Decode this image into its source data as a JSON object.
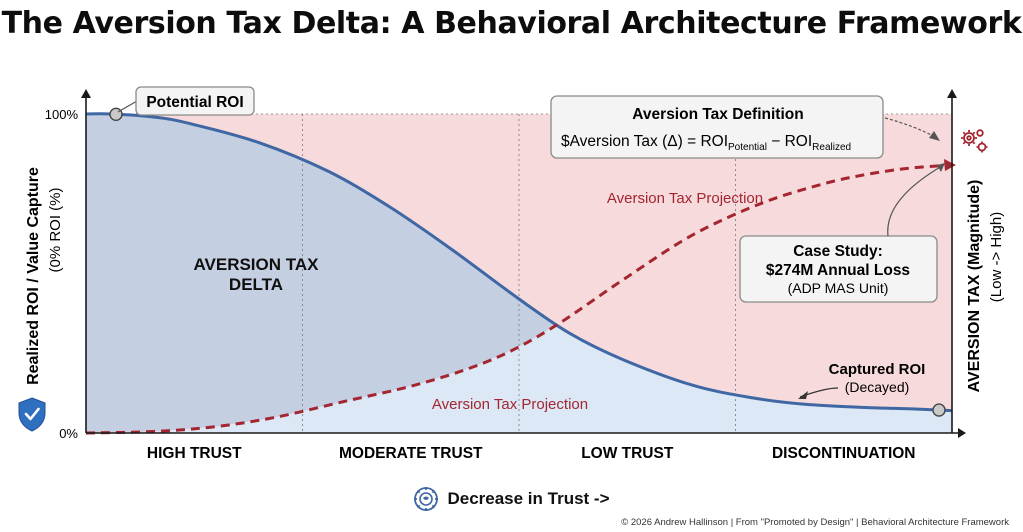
{
  "title": "The Aversion Tax Delta: A Behavioral Architecture Framework",
  "colors": {
    "curve": "#3f67a3",
    "projection": "#a32630",
    "delta_fill": "#c3cee0",
    "captured_fill": "#dce8f5",
    "tax_fill": "#f7dadb",
    "axis": "#1a1a1a"
  },
  "chart_data": {
    "type": "area",
    "title": "The Aversion Tax Delta: A Behavioral Architecture Framework",
    "xlabel": "Decrease in Trust ->",
    "ylabel": "Realized ROI / Value Capture",
    "ylabel_sub": "(0% ROI (%)",
    "y2label": "AVERSION TAX (Magnitude)",
    "y2label_sub": "(Low -> High)",
    "ylim": [
      0,
      100
    ],
    "xlim": [
      0,
      1
    ],
    "y_ticks": [
      {
        "value": 100,
        "label": "100%"
      },
      {
        "value": 0,
        "label": "0%"
      }
    ],
    "categories": [
      "HIGH TRUST",
      "MODERATE TRUST",
      "LOW TRUST",
      "DISCONTINUATION"
    ],
    "series": [
      {
        "name": "Captured ROI",
        "style": "solid",
        "x": [
          0,
          0.03,
          0.08,
          0.12,
          0.2,
          0.28,
          0.35,
          0.42,
          0.5,
          0.56,
          0.62,
          0.7,
          0.77,
          0.83,
          0.9,
          0.96,
          1.0
        ],
        "y": [
          100,
          100,
          99,
          97,
          91,
          82,
          71,
          58,
          42,
          31,
          23,
          15,
          11,
          9,
          8,
          7.5,
          7
        ]
      },
      {
        "name": "Aversion Tax Projection",
        "style": "dashed",
        "x": [
          0,
          0.08,
          0.15,
          0.22,
          0.3,
          0.38,
          0.45,
          0.5,
          0.55,
          0.62,
          0.7,
          0.78,
          0.85,
          0.9,
          0.95,
          1.0
        ],
        "y": [
          0,
          0.5,
          2,
          5,
          10,
          15,
          21,
          27,
          35,
          48,
          62,
          72,
          78,
          81,
          83,
          84
        ]
      }
    ],
    "annotations": {
      "potential_roi": "Potential ROI",
      "delta_line1": "AVERSION TAX",
      "delta_line2": "DELTA",
      "projection_upper": "Aversion Tax Projection",
      "projection_lower": "Aversion Tax Projection",
      "captured_title": "Captured ROI",
      "captured_sub": "(Decayed)",
      "definition_title": "Aversion Tax Definition",
      "definition_formula_prefix": "$Aversion Tax (Δ) = ROI",
      "definition_sub1": "Potential",
      "definition_minus": " − ROI",
      "definition_sub2": "Realized",
      "case_line1": "Case Study:",
      "case_line2": "$274M Annual Loss",
      "case_line3": "(ADP MAS Unit)"
    },
    "grid": false
  },
  "footer": "© 2026 Andrew Hallinson | From \"Promoted by Design\" | Behavioral Architecture Framework",
  "icons": {
    "shield": "shield-check-icon",
    "gears": "gears-icon",
    "brain": "brain-gear-icon"
  }
}
